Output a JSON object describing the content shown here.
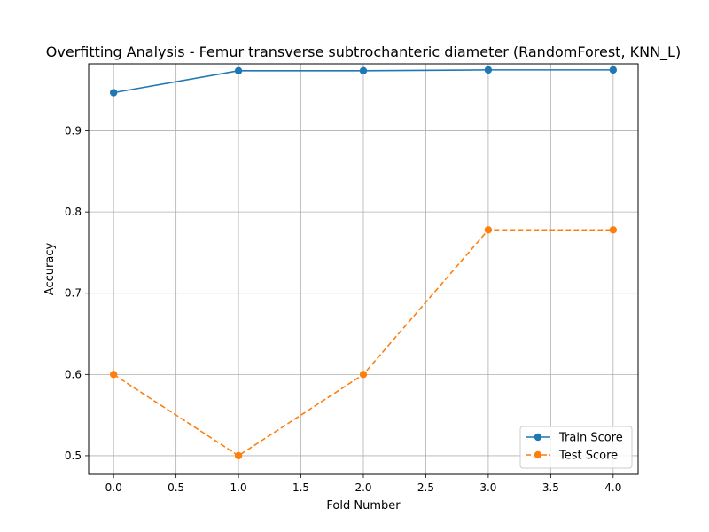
{
  "chart_data": {
    "type": "line",
    "title": "Overfitting Analysis - Femur transverse subtrochanteric diameter (RandomForest, KNN_L)",
    "xlabel": "Fold Number",
    "ylabel": "Accuracy",
    "x": [
      0,
      1,
      2,
      3,
      4
    ],
    "xlim": [
      -0.2,
      4.2
    ],
    "ylim": [
      0.477,
      0.9825
    ],
    "xticks": [
      0.0,
      0.5,
      1.0,
      1.5,
      2.0,
      2.5,
      3.0,
      3.5,
      4.0
    ],
    "xtick_labels": [
      "0.0",
      "0.5",
      "1.0",
      "1.5",
      "2.0",
      "2.5",
      "3.0",
      "3.5",
      "4.0"
    ],
    "yticks": [
      0.5,
      0.6,
      0.7,
      0.8,
      0.9
    ],
    "ytick_labels": [
      "0.5",
      "0.6",
      "0.7",
      "0.8",
      "0.9"
    ],
    "grid": true,
    "legend_position": "bottom-right",
    "series": [
      {
        "name": "Train Score",
        "values": [
          0.947,
          0.974,
          0.974,
          0.975,
          0.975
        ],
        "color": "#1f77b4",
        "line_style": "solid",
        "marker": "circle"
      },
      {
        "name": "Test Score",
        "values": [
          0.6,
          0.5,
          0.6,
          0.778,
          0.778
        ],
        "color": "#ff7f0e",
        "line_style": "dashed",
        "marker": "circle"
      }
    ]
  }
}
